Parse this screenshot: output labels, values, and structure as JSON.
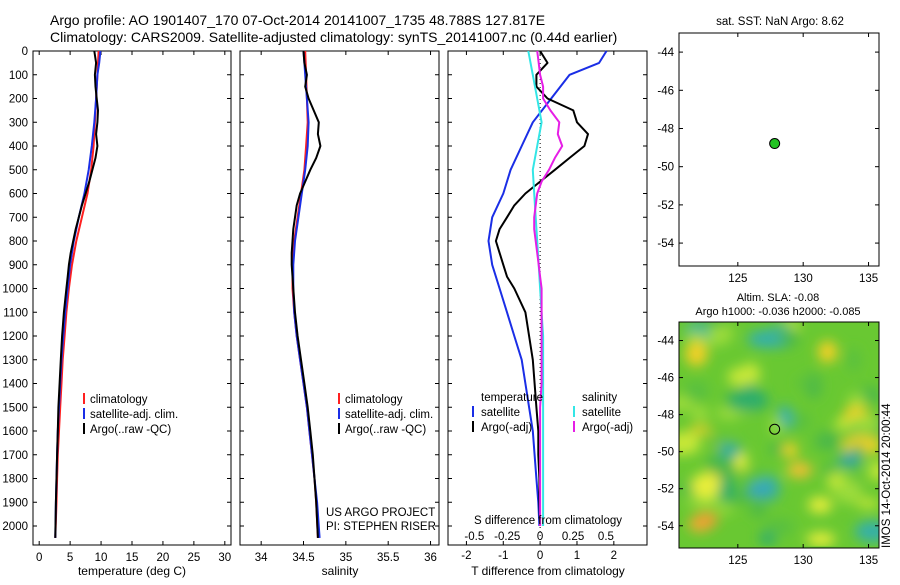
{
  "header": {
    "line1": "Argo profile: AO 1901407_170 07-Oct-2014 20141007_1735 48.788S 127.817E",
    "line2": "Climatology: CARS2009. Satellite-adjusted climatology: synTS_20141007.nc (0.44d earlier)"
  },
  "colors": {
    "climatology": "#ff2020",
    "satellite": "#1a2ee6",
    "argo": "#000000",
    "sat_salinity": "#33e6e6",
    "argo_adj_salinity": "#e61ee6",
    "argo_dot": "#22c322"
  },
  "chart_data": [
    {
      "type": "line",
      "title": "",
      "xlabel": "temperature (deg C)",
      "ylabel": "",
      "xlim": [
        -1,
        31
      ],
      "ylim": [
        2080,
        0
      ],
      "xticks": [
        0,
        5,
        10,
        15,
        20,
        25,
        30
      ],
      "xtick_labels": [
        "0",
        "5",
        "10",
        "15",
        "20",
        "25",
        "30"
      ],
      "yticks": [
        0,
        100,
        200,
        300,
        400,
        500,
        600,
        700,
        800,
        900,
        1000,
        1100,
        1200,
        1300,
        1400,
        1500,
        1600,
        1700,
        1800,
        1900,
        2000
      ],
      "ytick_labels": [
        "0",
        "100",
        "200",
        "300",
        "400",
        "500",
        "600",
        "700",
        "800",
        "900",
        "1000",
        "1100",
        "1200",
        "1300",
        "1400",
        "1500",
        "1600",
        "1700",
        "1800",
        "1900",
        "2000"
      ],
      "legend": [
        "climatology",
        "satellite-adj. clim.",
        "Argo(..raw -QC)"
      ],
      "series": [
        {
          "name": "climatology",
          "color": "#ff2020",
          "depth": [
            0,
            100,
            200,
            300,
            400,
            500,
            600,
            700,
            800,
            900,
            1000,
            1100,
            1200,
            1300,
            1400,
            1500,
            1600,
            1700,
            1800,
            1900,
            2050
          ],
          "values": [
            9.6,
            9.4,
            9.2,
            9.0,
            8.8,
            8.4,
            7.8,
            6.9,
            6.0,
            5.3,
            4.8,
            4.4,
            4.1,
            3.8,
            3.6,
            3.4,
            3.2,
            3.0,
            2.9,
            2.8,
            2.6
          ]
        },
        {
          "name": "satellite-adj. clim.",
          "color": "#1a2ee6",
          "depth": [
            0,
            50,
            100,
            200,
            300,
            400,
            500,
            600,
            700,
            800,
            900,
            1000,
            1100,
            1200,
            1300,
            1400,
            1500,
            1600,
            1700,
            1800,
            1900,
            2050
          ],
          "values": [
            9.9,
            9.7,
            9.4,
            9.2,
            8.9,
            8.5,
            8.0,
            7.3,
            6.4,
            5.6,
            5.0,
            4.6,
            4.2,
            3.9,
            3.6,
            3.4,
            3.2,
            3.0,
            2.9,
            2.8,
            2.7,
            2.6
          ]
        },
        {
          "name": "Argo(..raw -QC)",
          "color": "#000000",
          "depth": [
            0,
            50,
            100,
            150,
            200,
            250,
            300,
            350,
            400,
            450,
            500,
            550,
            600,
            650,
            700,
            750,
            800,
            850,
            900,
            950,
            1000,
            1100,
            1200,
            1300,
            1400,
            1500,
            1600,
            1700,
            1800,
            1900,
            2050
          ],
          "values": [
            8.9,
            9.2,
            9.0,
            9.1,
            9.3,
            9.5,
            9.4,
            9.2,
            9.4,
            9.1,
            8.6,
            8.1,
            7.5,
            6.9,
            6.4,
            5.9,
            5.5,
            5.1,
            4.8,
            4.6,
            4.4,
            4.0,
            3.7,
            3.5,
            3.3,
            3.1,
            3.0,
            2.9,
            2.8,
            2.7,
            2.6
          ]
        }
      ]
    },
    {
      "type": "line",
      "xlabel": "salinity",
      "xlim": [
        33.75,
        36.1
      ],
      "ylim": [
        2080,
        0
      ],
      "xticks": [
        34,
        34.5,
        35,
        35.5,
        36
      ],
      "xtick_labels": [
        "34",
        "34.5",
        "35",
        "35.5",
        "36"
      ],
      "legend": [
        "climatology",
        "satellite-adj. clim.",
        "Argo(..raw -QC)"
      ],
      "annotation": [
        "US ARGO PROJECT",
        "PI: STEPHEN RISER"
      ],
      "series": [
        {
          "name": "climatology",
          "color": "#ff2020",
          "depth": [
            0,
            100,
            200,
            300,
            400,
            500,
            600,
            700,
            800,
            900,
            1000,
            1100,
            1200,
            1300,
            1400,
            1500,
            1600,
            1700,
            1800,
            1900,
            2050
          ],
          "values": [
            34.52,
            34.53,
            34.54,
            34.55,
            34.53,
            34.51,
            34.47,
            34.43,
            34.39,
            34.37,
            34.37,
            34.39,
            34.42,
            34.46,
            34.5,
            34.54,
            34.57,
            34.6,
            34.63,
            34.65,
            34.67
          ]
        },
        {
          "name": "satellite-adj. clim.",
          "color": "#1a2ee6",
          "depth": [
            0,
            50,
            100,
            200,
            300,
            400,
            500,
            600,
            700,
            800,
            900,
            1000,
            1100,
            1200,
            1300,
            1400,
            1500,
            1600,
            1700,
            1800,
            1900,
            2050
          ],
          "values": [
            34.5,
            34.51,
            34.52,
            34.54,
            34.56,
            34.55,
            34.52,
            34.48,
            34.44,
            34.4,
            34.38,
            34.38,
            34.39,
            34.42,
            34.46,
            34.5,
            34.54,
            34.57,
            34.6,
            34.63,
            34.66,
            34.69
          ]
        },
        {
          "name": "Argo(..raw -QC)",
          "color": "#000000",
          "depth": [
            0,
            50,
            100,
            150,
            200,
            250,
            300,
            350,
            400,
            450,
            500,
            550,
            600,
            650,
            700,
            750,
            800,
            850,
            900,
            950,
            1000,
            1100,
            1200,
            1300,
            1400,
            1500,
            1600,
            1700,
            1800,
            1900,
            2050
          ],
          "values": [
            34.5,
            34.51,
            34.54,
            34.52,
            34.56,
            34.62,
            34.68,
            34.67,
            34.7,
            34.65,
            34.58,
            34.52,
            34.46,
            34.42,
            34.4,
            34.38,
            34.37,
            34.36,
            34.36,
            34.37,
            34.38,
            34.4,
            34.43,
            34.47,
            34.51,
            34.55,
            34.58,
            34.61,
            34.63,
            34.65,
            34.67
          ]
        }
      ]
    },
    {
      "type": "line",
      "xlabel": "T difference from climatology",
      "top_label": "S difference from climatology",
      "xlim": [
        -2.5,
        2.9
      ],
      "ylim": [
        2080,
        0
      ],
      "xticks": [
        -2,
        -1,
        0,
        1,
        2
      ],
      "xtick_labels": [
        "-2",
        "-1",
        "0",
        "1",
        "2"
      ],
      "sticks": [
        -0.5,
        -0.25,
        0,
        0.25,
        0.5
      ],
      "stick_labels": [
        "-0.5",
        "-0.25",
        "0",
        "0.25",
        "0.5"
      ],
      "legend_t": {
        "title": "temperature",
        "items": [
          "satellite",
          "Argo(-adj)"
        ]
      },
      "legend_s": {
        "title": "salinity",
        "items": [
          "satellite",
          "Argo(-adj)"
        ]
      },
      "series": [
        {
          "name": "T satellite",
          "color": "#1a2ee6",
          "depth": [
            0,
            50,
            100,
            200,
            300,
            400,
            500,
            600,
            700,
            800,
            900,
            1000,
            1100,
            1200,
            1300,
            1400,
            1500,
            1600,
            1700,
            1800,
            1900,
            2000
          ],
          "values": [
            1.8,
            1.6,
            0.8,
            0.3,
            -0.2,
            -0.5,
            -0.8,
            -1.0,
            -1.3,
            -1.4,
            -1.3,
            -1.1,
            -0.9,
            -0.7,
            -0.5,
            -0.4,
            -0.3,
            -0.2,
            -0.15,
            -0.1,
            -0.05,
            -0.02
          ]
        },
        {
          "name": "T Argo(-adj)",
          "color": "#000000",
          "depth": [
            0,
            50,
            100,
            150,
            200,
            250,
            300,
            350,
            400,
            450,
            500,
            550,
            600,
            650,
            700,
            750,
            800,
            850,
            900,
            950,
            1000,
            1100,
            1200,
            1300,
            1400,
            1500,
            1600,
            1700,
            1800,
            1900,
            2000
          ],
          "values": [
            0.0,
            0.2,
            -0.1,
            -0.1,
            0.2,
            0.9,
            1.0,
            1.3,
            1.2,
            0.8,
            0.4,
            0.0,
            -0.4,
            -0.7,
            -0.9,
            -1.1,
            -1.2,
            -1.1,
            -1.0,
            -0.9,
            -0.7,
            -0.4,
            -0.3,
            -0.2,
            -0.15,
            -0.1,
            -0.05,
            -0.05,
            -0.02,
            -0.02,
            0.0
          ]
        },
        {
          "name": "S satellite",
          "color": "#33e6e6",
          "depth": [
            0,
            100,
            200,
            300,
            400,
            500,
            600,
            700,
            800,
            900,
            1000,
            1100,
            1200,
            1300,
            1400,
            1500,
            1600,
            1700,
            1800,
            1900,
            2000
          ],
          "values": [
            -0.08,
            -0.05,
            -0.02,
            0.01,
            -0.02,
            -0.05,
            -0.04,
            -0.03,
            -0.02,
            -0.01,
            0.0,
            0.01,
            0.02,
            0.02,
            0.02,
            0.02,
            0.02,
            0.02,
            0.02,
            0.02,
            0.02
          ]
        },
        {
          "name": "S Argo(-adj)",
          "color": "#e61ee6",
          "depth": [
            0,
            50,
            100,
            150,
            200,
            250,
            300,
            350,
            400,
            450,
            500,
            550,
            600,
            650,
            700,
            750,
            800,
            850,
            900,
            950,
            1000,
            1100,
            1200,
            1300,
            1400,
            1500,
            1600,
            1700,
            1800,
            1900,
            2000
          ],
          "values": [
            -0.02,
            -0.01,
            0.0,
            0.02,
            0.02,
            0.07,
            0.13,
            0.12,
            0.15,
            0.1,
            0.06,
            0.01,
            -0.02,
            -0.03,
            -0.04,
            -0.04,
            -0.03,
            -0.02,
            -0.01,
            0.0,
            0.01,
            0.01,
            0.01,
            0.01,
            0.01,
            0.0,
            0.0,
            0.0,
            0.0,
            0.0,
            0.0
          ]
        }
      ]
    },
    {
      "type": "scatter",
      "title": "sat. SST: NaN Argo: 8.62",
      "xlim": [
        120.5,
        135.8
      ],
      "ylim": [
        -55.2,
        -43.0
      ],
      "xticks": [
        125,
        130,
        135
      ],
      "xtick_labels": [
        "125",
        "130",
        "135"
      ],
      "yticks": [
        -44,
        -46,
        -48,
        -50,
        -52,
        -54
      ],
      "ytick_labels": [
        "-44",
        "-46",
        "-48",
        "-50",
        "-52",
        "-54"
      ],
      "points": [
        {
          "x": 127.817,
          "y": -48.788
        }
      ]
    },
    {
      "type": "heatmap",
      "title1": "Altim. SLA: -0.08",
      "title2": "Argo h1000: -0.036 h2000: -0.085",
      "side_label": "IMOS 14-Oct-2014 20:00:44",
      "xlim": [
        120.5,
        135.8
      ],
      "ylim": [
        -55.2,
        -43.0
      ],
      "xticks": [
        125,
        130,
        135
      ],
      "xtick_labels": [
        "125",
        "130",
        "135"
      ],
      "yticks": [
        -44,
        -46,
        -48,
        -50,
        -52,
        -54
      ],
      "ytick_labels": [
        "-44",
        "-46",
        "-48",
        "-50",
        "-52",
        "-54"
      ],
      "points": [
        {
          "x": 127.817,
          "y": -48.788
        }
      ]
    }
  ]
}
